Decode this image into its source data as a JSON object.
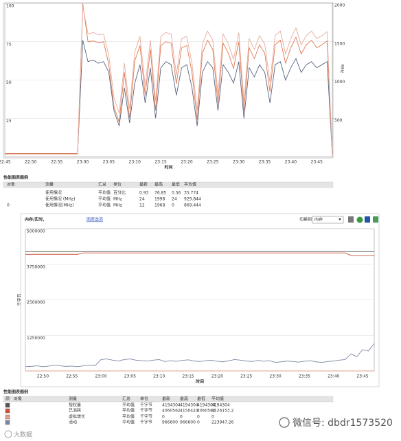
{
  "chart_data": [
    {
      "type": "line",
      "x_label": "时间",
      "y2_label": "MHz",
      "categories": [
        "22:45",
        null,
        null,
        null,
        null,
        "22:50",
        null,
        null,
        null,
        null,
        "22:55",
        null,
        null,
        null,
        null,
        "23:00",
        null,
        null,
        null,
        null,
        "23:05",
        null,
        null,
        null,
        null,
        "23:10",
        null,
        null,
        null,
        null,
        "23:15",
        null,
        null,
        null,
        null,
        "23:20",
        null,
        null,
        null,
        null,
        "23:25",
        null,
        null,
        null,
        null,
        "23:30",
        null,
        null,
        null,
        null,
        "23:35",
        null,
        null,
        null,
        null,
        "23:40",
        null,
        null,
        null,
        null,
        "23:45",
        null,
        null,
        null
      ],
      "ylim": [
        0,
        100
      ],
      "yticks": [
        25,
        50,
        75,
        100
      ],
      "y2lim": [
        0,
        2000
      ],
      "y2ticks": [
        500,
        1000,
        1500,
        2000
      ],
      "grid": true,
      "series": [
        {
          "name": "使用情况",
          "color": "#56627e",
          "values": [
            2,
            2,
            2,
            2,
            2,
            2,
            2,
            2,
            2,
            2,
            2,
            2,
            2,
            2,
            2,
            76,
            62,
            63,
            61,
            62,
            55,
            30,
            20,
            45,
            22,
            48,
            60,
            35,
            58,
            25,
            58,
            62,
            60,
            40,
            58,
            60,
            45,
            20,
            55,
            62,
            58,
            30,
            60,
            55,
            48,
            62,
            25,
            58,
            52,
            60,
            55,
            35,
            60,
            62,
            50,
            58,
            64,
            55,
            60,
            62,
            58,
            60,
            62,
            0.93
          ]
        },
        {
          "name": "使用情况 (MHz)",
          "color": "#e07850",
          "axis": "y2",
          "values": [
            40,
            40,
            40,
            40,
            40,
            40,
            40,
            40,
            40,
            40,
            40,
            40,
            40,
            40,
            40,
            1998,
            1500,
            1510,
            1490,
            1500,
            1200,
            650,
            450,
            1100,
            500,
            1250,
            1450,
            800,
            1400,
            600,
            1450,
            1500,
            1480,
            950,
            1420,
            1450,
            1100,
            480,
            1350,
            1520,
            1400,
            700,
            1480,
            1350,
            1150,
            1500,
            600,
            1420,
            1280,
            1460,
            1350,
            850,
            1460,
            1520,
            1220,
            1420,
            1560,
            1340,
            1460,
            1520,
            1420,
            1460,
            1510,
            24
          ]
        },
        {
          "name": "使用情况(MHz)",
          "color": "#e8aa9c",
          "axis": "y2",
          "values": [
            30,
            30,
            30,
            30,
            30,
            30,
            30,
            30,
            30,
            30,
            30,
            30,
            30,
            30,
            30,
            1968,
            1600,
            1620,
            1590,
            1600,
            1320,
            770,
            570,
            1220,
            620,
            1370,
            1570,
            920,
            1520,
            720,
            1570,
            1620,
            1600,
            1070,
            1540,
            1570,
            1220,
            600,
            1470,
            1640,
            1520,
            820,
            1600,
            1470,
            1270,
            1620,
            720,
            1540,
            1400,
            1580,
            1470,
            970,
            1580,
            1640,
            1340,
            1540,
            1680,
            1460,
            1580,
            1640,
            1540,
            1580,
            1630,
            12
          ]
        }
      ]
    },
    {
      "type": "line",
      "title": "内存/实时,",
      "x_label": "时间",
      "y_label": "千字节",
      "categories": [
        null,
        null,
        null,
        "22:50",
        null,
        null,
        null,
        null,
        "22:55",
        null,
        null,
        null,
        null,
        "23:00",
        null,
        null,
        null,
        null,
        "23:05",
        null,
        null,
        null,
        null,
        "23:10",
        null,
        null,
        null,
        null,
        "23:15",
        null,
        null,
        null,
        null,
        "23:20",
        null,
        null,
        null,
        null,
        "23:25",
        null,
        null,
        null,
        null,
        "23:30",
        null,
        null,
        null,
        null,
        "23:35",
        null,
        null,
        null,
        null,
        "23:40",
        null,
        null,
        null,
        null,
        "23:45",
        null,
        null
      ],
      "ylim": [
        0,
        5000000
      ],
      "yticks": [
        1250000,
        2500000,
        3750000,
        5000000
      ],
      "grid": true,
      "series": [
        {
          "name": "授权量",
          "color": "#555555",
          "values": [
            4194304,
            4194304,
            4194304,
            4194304,
            4194304,
            4194304,
            4194304,
            4194304,
            4194304,
            4194304,
            4194304,
            4194304,
            4194304,
            4194304,
            4194304,
            4194304,
            4194304,
            4194304,
            4194304,
            4194304,
            4194304,
            4194304,
            4194304,
            4194304,
            4194304,
            4194304,
            4194304,
            4194304,
            4194304,
            4194304,
            4194304,
            4194304,
            4194304,
            4194304,
            4194304,
            4194304,
            4194304,
            4194304,
            4194304,
            4194304,
            4194304,
            4194304,
            4194304,
            4194304,
            4194304,
            4194304,
            4194304,
            4194304,
            4194304,
            4194304,
            4194304,
            4194304,
            4194304,
            4194304,
            4194304,
            4194304,
            4194304,
            4194304,
            4194304,
            4194304,
            4194304
          ]
        },
        {
          "name": "已消耗",
          "color": "#d05040",
          "values": [
            4100000,
            4100000,
            4100000,
            4100000,
            4100000,
            4100000,
            4100000,
            4100000,
            4100000,
            4100000,
            4150424,
            4150424,
            4150424,
            4150424,
            4150424,
            4150424,
            4150424,
            4150424,
            4150424,
            4150424,
            4150424,
            4150424,
            4150424,
            4150424,
            4150424,
            4150424,
            4150424,
            4150424,
            4150424,
            4150424,
            4150424,
            4150424,
            4150424,
            4150424,
            4150424,
            4150424,
            4150424,
            4150424,
            4150424,
            4150424,
            4150424,
            4150424,
            4150424,
            4150424,
            4150424,
            4150424,
            4150424,
            4150424,
            4150424,
            4150424,
            4150424,
            4150424,
            4150424,
            4150424,
            4150424,
            4150424,
            4060562,
            4060562,
            4060562,
            4060562,
            4060562
          ]
        },
        {
          "name": "虚拟增长",
          "color": "#e0a090",
          "values": [
            0,
            0,
            0,
            0,
            0,
            0,
            0,
            0,
            0,
            0,
            0,
            0,
            0,
            0,
            0,
            0,
            0,
            0,
            0,
            0,
            0,
            0,
            0,
            0,
            0,
            0,
            0,
            0,
            0,
            0,
            0,
            0,
            0,
            0,
            0,
            0,
            0,
            0,
            0,
            0,
            0,
            0,
            0,
            0,
            0,
            0,
            0,
            0,
            0,
            0,
            0,
            0,
            0,
            0,
            0,
            0,
            0,
            0,
            0,
            0,
            0
          ]
        },
        {
          "name": "活动",
          "color": "#7a86a2",
          "values": [
            150000,
            160000,
            180000,
            150000,
            170000,
            200000,
            180000,
            160000,
            170000,
            150000,
            180000,
            200000,
            190000,
            400000,
            420000,
            380000,
            350000,
            400000,
            420000,
            380000,
            360000,
            350000,
            380000,
            400000,
            330000,
            360000,
            340000,
            370000,
            390000,
            350000,
            330000,
            360000,
            380000,
            340000,
            320000,
            360000,
            400000,
            380000,
            350000,
            330000,
            370000,
            340000,
            360000,
            300000,
            320000,
            350000,
            330000,
            310000,
            340000,
            360000,
            320000,
            300000,
            330000,
            350000,
            380000,
            400000,
            600000,
            500000,
            750000,
            700000,
            966600
          ]
        }
      ]
    }
  ],
  "top_legend": {
    "title": "性能图表图例",
    "headers": [
      "对象",
      "测量",
      "汇总",
      "单位",
      "最新",
      "最高",
      "最低",
      "平均值"
    ],
    "rows": [
      {
        "rollup": "平均值",
        "unit": "百分比",
        "latest": "0.93",
        "max": "76.85",
        "min": "0.56",
        "avg": "35.774"
      },
      {
        "rollup": "平均值",
        "unit": "MHz",
        "latest": "24",
        "max": "1998",
        "min": "24",
        "avg": "929.844"
      },
      {
        "object": "0",
        "rollup": "平均值",
        "unit": "MHz",
        "latest": "12",
        "max": "1968",
        "min": "0",
        "avg": "869.444"
      }
    ]
  },
  "memory_panel": {
    "options_link": "图表选项",
    "switch_label": "切换到",
    "switch_value": "内存"
  },
  "bottom_legend": {
    "title": "性能图表图例",
    "headers": [
      "颜",
      "对象",
      "测量",
      "汇总",
      "单位",
      "最新",
      "最高",
      "最低",
      "平均值"
    ],
    "rows": [
      {
        "rollup": "平均值",
        "unit": "千字节",
        "latest": "4194304",
        "max": "4194304",
        "min": "4194304",
        "avg": "4194304"
      },
      {
        "rollup": "平均值",
        "unit": "千字节",
        "latest": "4060562",
        "max": "4150424",
        "min": "4060562",
        "avg": "4126153.2"
      },
      {
        "rollup": "平均值",
        "unit": "千字节",
        "latest": "0",
        "max": "0",
        "min": "0",
        "avg": "0"
      },
      {
        "rollup": "平均值",
        "unit": "千字节",
        "latest": "966600",
        "max": "966600",
        "min": "0",
        "avg": "223947.26"
      }
    ]
  },
  "watermark": {
    "account": "微信号: dbdr1573520",
    "corner": "大数据"
  }
}
